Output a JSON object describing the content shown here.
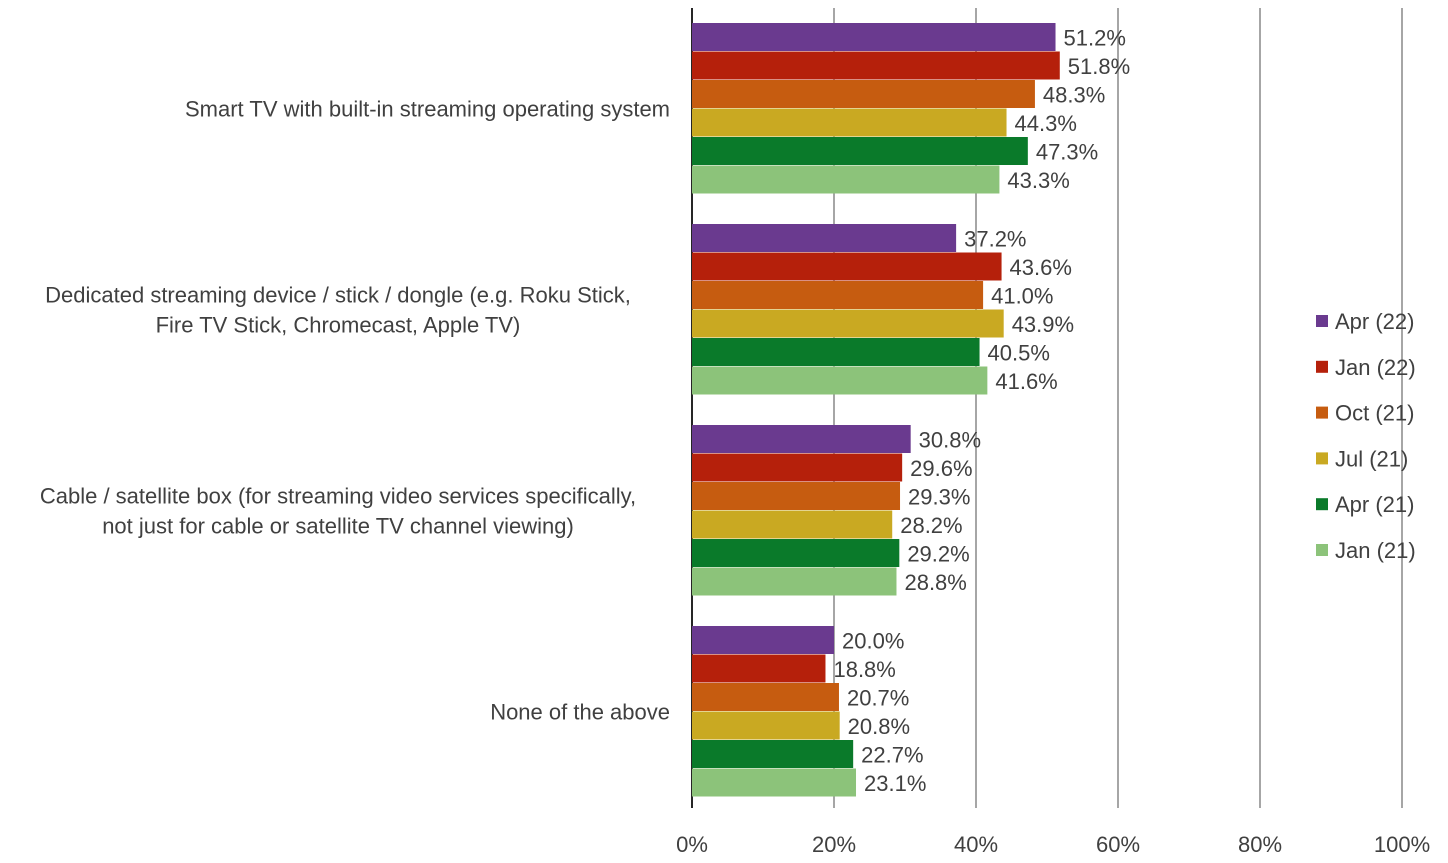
{
  "chart_data": {
    "type": "bar",
    "orientation": "horizontal",
    "categories": [
      [
        "Smart TV with built-in streaming operating system"
      ],
      [
        "Dedicated streaming device / stick / dongle (e.g. Roku Stick,",
        "Fire TV Stick, Chromecast, Apple TV)"
      ],
      [
        "Cable / satellite box (for streaming video services specifically,",
        "not just for cable or satellite TV channel viewing)"
      ],
      [
        "None of the above"
      ]
    ],
    "series": [
      {
        "name": "Apr (22)",
        "color": "#6a3a8f",
        "values": [
          51.2,
          37.2,
          30.8,
          20.0
        ],
        "labels": [
          "51.2%",
          "37.2%",
          "30.8%",
          "20.0%"
        ]
      },
      {
        "name": "Jan (22)",
        "color": "#b5200b",
        "values": [
          51.8,
          43.6,
          29.6,
          18.8
        ],
        "labels": [
          "51.8%",
          "43.6%",
          "29.6%",
          "18.8%"
        ]
      },
      {
        "name": "Oct (21)",
        "color": "#c65c10",
        "values": [
          48.3,
          41.0,
          29.3,
          20.7
        ],
        "labels": [
          "48.3%",
          "41.0%",
          "29.3%",
          "20.7%"
        ]
      },
      {
        "name": "Jul (21)",
        "color": "#c9a922",
        "values": [
          44.3,
          43.9,
          28.2,
          20.8
        ],
        "labels": [
          "44.3%",
          "43.9%",
          "28.2%",
          "20.8%"
        ]
      },
      {
        "name": "Apr (21)",
        "color": "#0a7a2a",
        "values": [
          47.3,
          40.5,
          29.2,
          22.7
        ],
        "labels": [
          "47.3%",
          "40.5%",
          "29.2%",
          "22.7%"
        ]
      },
      {
        "name": "Jan (21)",
        "color": "#8cc37a",
        "values": [
          43.3,
          41.6,
          28.8,
          23.1
        ],
        "labels": [
          "43.3%",
          "41.6%",
          "28.8%",
          "23.1%"
        ]
      }
    ],
    "xlim": [
      0,
      100
    ],
    "xticks": [
      0,
      20,
      40,
      60,
      80,
      100
    ],
    "xtick_labels": [
      "0%",
      "20%",
      "40%",
      "60%",
      "80%",
      "100%"
    ],
    "grid": true,
    "legend": "right",
    "title": "",
    "xlabel": "",
    "ylabel": ""
  }
}
